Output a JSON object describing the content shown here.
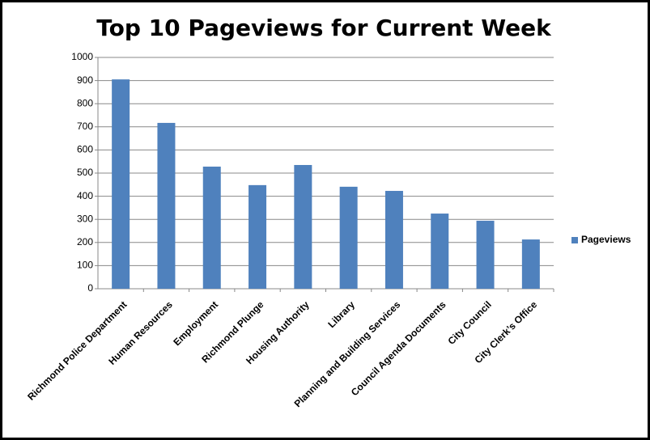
{
  "chart_data": {
    "type": "bar",
    "title": "Top 10 Pageviews for Current Week",
    "categories": [
      "Richmond Police Department",
      "Human Resources",
      "Employment",
      "Richmond Plunge",
      "Housing Authority",
      "Library",
      "Planning and Building Services",
      "Council Agenda Documents",
      "City Council",
      "City Clerk’s Office"
    ],
    "series": [
      {
        "name": "Pageviews",
        "color": "#4f81bd",
        "values": [
          905,
          717,
          528,
          448,
          535,
          441,
          423,
          325,
          294,
          213
        ]
      }
    ],
    "ylim": [
      0,
      1000
    ],
    "yticks": [
      0,
      100,
      200,
      300,
      400,
      500,
      600,
      700,
      800,
      900,
      1000
    ],
    "grid": true,
    "legend": "right"
  }
}
